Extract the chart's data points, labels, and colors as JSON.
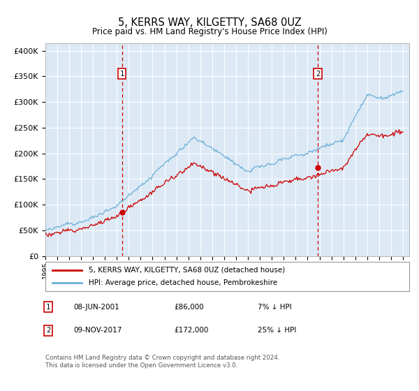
{
  "title": "5, KERRS WAY, KILGETTY, SA68 0UZ",
  "subtitle": "Price paid vs. HM Land Registry's House Price Index (HPI)",
  "ylabel_ticks": [
    "£0",
    "£50K",
    "£100K",
    "£150K",
    "£200K",
    "£250K",
    "£300K",
    "£350K",
    "£400K"
  ],
  "ytick_values": [
    0,
    50000,
    100000,
    150000,
    200000,
    250000,
    300000,
    350000,
    400000
  ],
  "ylim": [
    0,
    415000
  ],
  "xlim_start": 1995.0,
  "xlim_end": 2025.5,
  "background_color": "#dce9f5",
  "hpi_color": "#6baed6",
  "price_color": "#cc0000",
  "vline_color": "#cc0000",
  "marker1_date": 2001.44,
  "marker2_date": 2017.86,
  "legend_line1": "5, KERRS WAY, KILGETTY, SA68 0UZ (detached house)",
  "legend_line2": "HPI: Average price, detached house, Pembrokeshire",
  "note1_num": "1",
  "note1_date": "08-JUN-2001",
  "note1_price": "£86,000",
  "note1_hpi": "7% ↓ HPI",
  "note2_num": "2",
  "note2_date": "09-NOV-2017",
  "note2_price": "£172,000",
  "note2_hpi": "25% ↓ HPI",
  "footer": "Contains HM Land Registry data © Crown copyright and database right 2024.\nThis data is licensed under the Open Government Licence v3.0.",
  "xtick_years": [
    1995,
    1996,
    1997,
    1998,
    1999,
    2000,
    2001,
    2002,
    2003,
    2004,
    2005,
    2006,
    2007,
    2008,
    2009,
    2010,
    2011,
    2012,
    2013,
    2014,
    2015,
    2016,
    2017,
    2018,
    2019,
    2020,
    2021,
    2022,
    2023,
    2024,
    2025
  ]
}
